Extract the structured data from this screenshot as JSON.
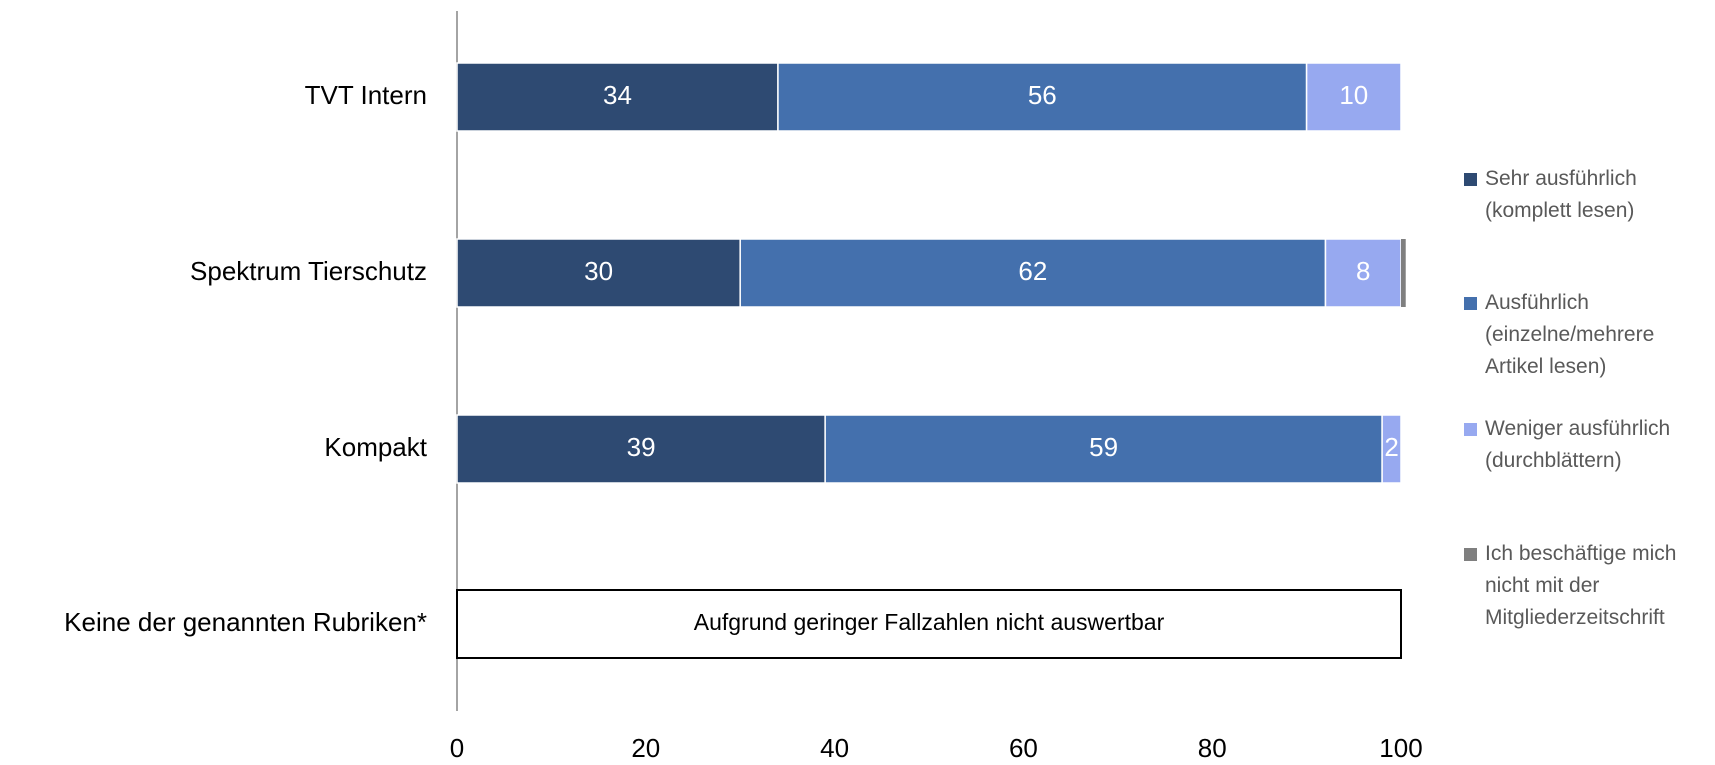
{
  "chart_data": {
    "type": "stacked-bar-horizontal",
    "categories": [
      "TVT Intern",
      "Spektrum Tierschutz",
      "Kompakt",
      "Keine der genannten Rubriken*"
    ],
    "series": [
      {
        "name": "Sehr ausführlich (komplett lesen)",
        "color": "#2e4a72",
        "values": [
          34,
          30,
          39,
          null
        ]
      },
      {
        "name": "Ausführlich (einzelne/mehrere Artikel lesen)",
        "color": "#4470ad",
        "values": [
          56,
          62,
          59,
          null
        ]
      },
      {
        "name": "Weniger ausführlich (durchblättern)",
        "color": "#97a9f0",
        "values": [
          10,
          8,
          2,
          null
        ]
      },
      {
        "name": "Ich beschäftige mich nicht mit der Mitgliederzeitschrift",
        "color": "#7f7f7f",
        "values": [
          0,
          0.5,
          0,
          null
        ]
      }
    ],
    "annotation": "Aufgrund geringer Fallzahlen nicht auswertbar",
    "xlim": [
      0,
      100
    ],
    "xticks": [
      0,
      20,
      40,
      60,
      80,
      100
    ],
    "grid": false,
    "legend": "right"
  }
}
